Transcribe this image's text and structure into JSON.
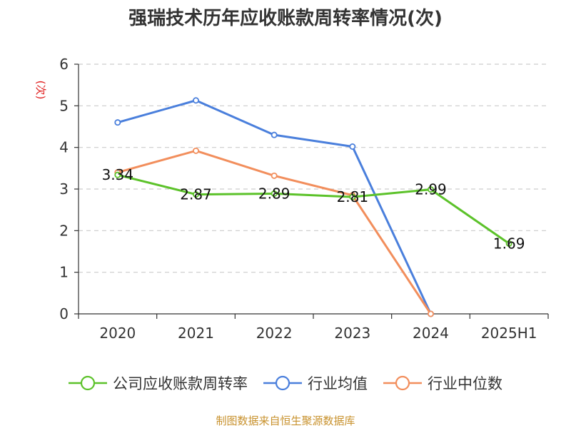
{
  "chart_data": {
    "type": "line",
    "title": "强瑞技术历年应收账款周转率情况(次)",
    "ylabel": "(次)",
    "xlabel": "",
    "categories": [
      "2020",
      "2021",
      "2022",
      "2023",
      "2024",
      "2025H1"
    ],
    "ylim": [
      0,
      6
    ],
    "yticks": [
      0,
      1,
      2,
      3,
      4,
      5,
      6
    ],
    "grid": true,
    "legend_position": "bottom",
    "series": [
      {
        "name": "公司应收账款周转率",
        "color": "#5cc22a",
        "values": [
          3.34,
          2.87,
          2.89,
          2.81,
          2.99,
          1.69
        ],
        "labels": [
          "3.34",
          "2.87",
          "2.89",
          "2.81",
          "2.99",
          "1.69"
        ],
        "show_labels": true
      },
      {
        "name": "行业均值",
        "color": "#4a7fdc",
        "values": [
          4.6,
          5.13,
          4.3,
          4.02,
          0,
          null
        ],
        "show_labels": false
      },
      {
        "name": "行业中位数",
        "color": "#f28e5c",
        "values": [
          3.4,
          3.92,
          3.32,
          2.85,
          0,
          null
        ],
        "show_labels": false
      }
    ],
    "source": "制图数据来自恒生聚源数据库"
  }
}
